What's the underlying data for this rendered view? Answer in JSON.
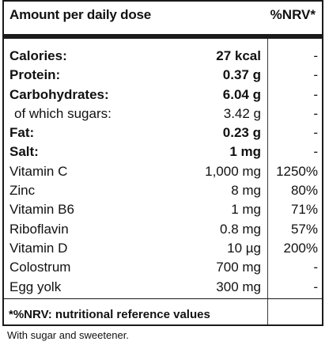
{
  "header": {
    "label": "Amount per daily dose",
    "nrv_label": "%NRV*"
  },
  "rows": [
    {
      "name": "Calories:",
      "amount": "27 kcal",
      "nrv": "-",
      "bold": true
    },
    {
      "name": "Protein:",
      "amount": "0.37 g",
      "nrv": "-",
      "bold": true
    },
    {
      "name": "Carbohydrates:",
      "amount": "6.04 g",
      "nrv": "-",
      "bold": true
    },
    {
      "name": "of which sugars:",
      "amount": "3.42 g",
      "nrv": "-",
      "bold": false,
      "indent": true
    },
    {
      "name": "Fat:",
      "amount": "0.23 g",
      "nrv": "-",
      "bold": true
    },
    {
      "name": "Salt:",
      "amount": "1 mg",
      "nrv": "-",
      "bold": true
    },
    {
      "name": "Vitamin C",
      "amount": "1,000 mg",
      "nrv": "1250%",
      "bold": false
    },
    {
      "name": "Zinc",
      "amount": "8 mg",
      "nrv": "80%",
      "bold": false
    },
    {
      "name": "Vitamin B6",
      "amount": "1 mg",
      "nrv": "71%",
      "bold": false
    },
    {
      "name": "Riboflavin",
      "amount": "0.8 mg",
      "nrv": "57%",
      "bold": false
    },
    {
      "name": "Vitamin D",
      "amount": "10 µg",
      "nrv": "200%",
      "bold": false
    },
    {
      "name": "Colostrum",
      "amount": "700 mg",
      "nrv": "-",
      "bold": false
    },
    {
      "name": "Egg yolk",
      "amount": "300 mg",
      "nrv": "-",
      "bold": false
    }
  ],
  "footnote": "*%NRV: nutritional reference values",
  "note": "With sugar and sweetener."
}
